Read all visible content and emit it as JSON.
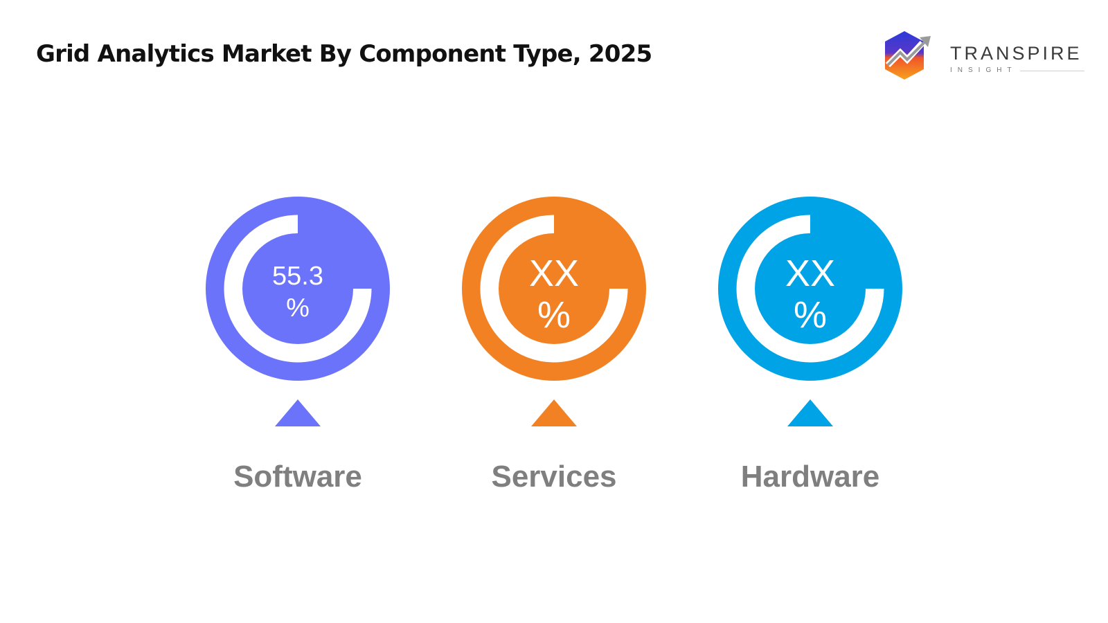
{
  "header": {
    "title": "Grid Analytics Market By Component Type, 2025"
  },
  "brand": {
    "name": "TRANSPIRE",
    "tagline": "INSIGHT"
  },
  "chart_data": {
    "type": "pie",
    "title": "Grid Analytics Market By Component Type, 2025",
    "categories": [
      "Software",
      "Services",
      "Hardware"
    ],
    "series": [
      {
        "values": [
          "55.3",
          "XX",
          "XX"
        ],
        "unit": "%"
      }
    ],
    "display": [
      {
        "category": "Software",
        "value": "55.3",
        "unit": "%",
        "color": "#6B73FA"
      },
      {
        "category": "Services",
        "value": "XX",
        "unit": "%",
        "color": "#F28124"
      },
      {
        "category": "Hardware",
        "value": "XX",
        "unit": "%",
        "color": "#00A3E6"
      }
    ],
    "grid": false,
    "legend": "none"
  }
}
